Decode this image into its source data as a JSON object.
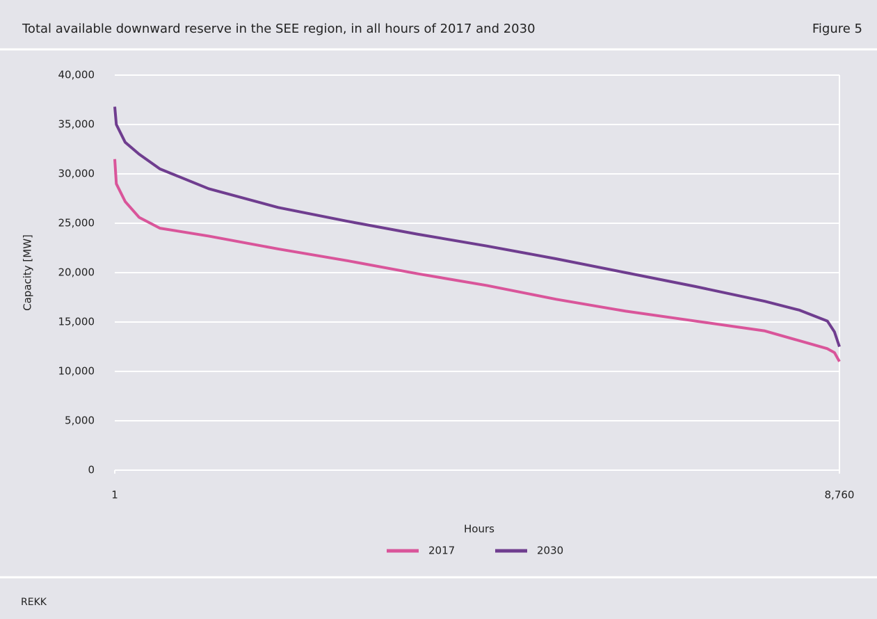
{
  "chart_data": {
    "type": "line",
    "title": "Total available downward reserve in the SEE region, in all hours of 2017 and 2030",
    "figure": "Figure 5",
    "source": "REKK",
    "x_label": "Hours",
    "y_label": "Capacity [MW]",
    "x": [
      1,
      20,
      127,
      295,
      547,
      1136,
      1976,
      2816,
      3656,
      4497,
      5337,
      6177,
      7017,
      7858,
      8278,
      8614,
      8700,
      8760
    ],
    "series": [
      {
        "name": "2017",
        "color": "#d9559a",
        "values": [
          31500,
          29000,
          27200,
          25600,
          24500,
          23700,
          22400,
          21200,
          19900,
          18700,
          17300,
          16100,
          15100,
          14100,
          13100,
          12300,
          11900,
          11000
        ]
      },
      {
        "name": "2030",
        "color": "#6f3d8f",
        "values": [
          36800,
          35000,
          33200,
          32000,
          30500,
          28500,
          26600,
          25200,
          23900,
          22700,
          21400,
          20000,
          18600,
          17100,
          16200,
          15100,
          14000,
          12500
        ]
      }
    ],
    "xlim": [
      1,
      8760
    ],
    "xticks": [
      1,
      {
        "value": 8760,
        "label": "8,760"
      }
    ],
    "ylim": [
      0,
      40000
    ],
    "yticks": [
      0,
      {
        "value": 5000,
        "label": "5,000"
      },
      {
        "value": 10000,
        "label": "10,000"
      },
      {
        "value": 15000,
        "label": "15,000"
      },
      {
        "value": 20000,
        "label": "20,000"
      },
      {
        "value": 25000,
        "label": "25,000"
      },
      {
        "value": 30000,
        "label": "30,000"
      },
      {
        "value": 35000,
        "label": "35,000"
      },
      {
        "value": 40000,
        "label": "40,000"
      }
    ],
    "grid": true,
    "legend": "bottom"
  }
}
